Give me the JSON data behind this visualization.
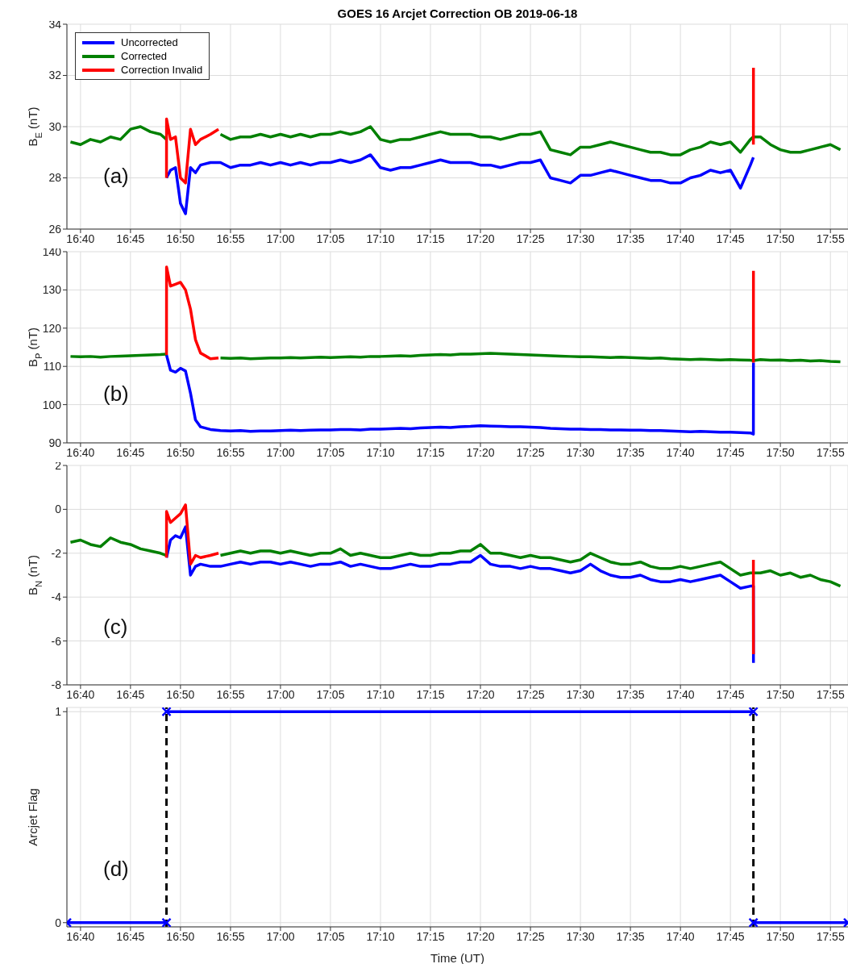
{
  "chart_data": [
    {
      "type": "line",
      "title": "GOES 16 Arcjet Correction OB 2019-06-18",
      "ylabel": "B$_{E}$ (nT)",
      "annotations": [
        "(a)"
      ],
      "grid": true,
      "legend": "top left",
      "xlim": [
        16.644,
        17.946
      ],
      "xticks": [
        {
          "value": 16.6667,
          "label": "16:40"
        },
        {
          "value": 16.75,
          "label": "16:45"
        },
        {
          "value": 16.8333,
          "label": "16:50"
        },
        {
          "value": 16.9167,
          "label": "16:55"
        },
        {
          "value": 17,
          "label": "17:00"
        },
        {
          "value": 17.0833,
          "label": "17:05"
        },
        {
          "value": 17.1667,
          "label": "17:10"
        },
        {
          "value": 17.25,
          "label": "17:15"
        },
        {
          "value": 17.3333,
          "label": "17:20"
        },
        {
          "value": 17.4167,
          "label": "17:25"
        },
        {
          "value": 17.5,
          "label": "17:30"
        },
        {
          "value": 17.5833,
          "label": "17:35"
        },
        {
          "value": 17.6667,
          "label": "17:40"
        },
        {
          "value": 17.75,
          "label": "17:45"
        },
        {
          "value": 17.8333,
          "label": "17:50"
        },
        {
          "value": 17.9167,
          "label": "17:55"
        }
      ],
      "ylim": [
        26,
        34
      ],
      "yticks": [
        26,
        28,
        30,
        32,
        34
      ],
      "x": [
        16.65,
        16.6667,
        16.6833,
        16.7,
        16.7167,
        16.7333,
        16.75,
        16.7667,
        16.7833,
        16.8,
        16.81,
        16.8167,
        16.8333,
        16.85,
        16.8667,
        16.8833,
        16.9,
        16.9167,
        16.9333,
        16.95,
        16.9667,
        16.9833,
        17,
        17.0167,
        17.0333,
        17.05,
        17.0667,
        17.0833,
        17.1,
        17.1167,
        17.1333,
        17.15,
        17.1667,
        17.1833,
        17.2,
        17.2167,
        17.2333,
        17.25,
        17.2667,
        17.2833,
        17.3,
        17.3167,
        17.3333,
        17.35,
        17.3667,
        17.3833,
        17.4,
        17.4167,
        17.4333,
        17.45,
        17.4667,
        17.4833,
        17.5,
        17.5167,
        17.5333,
        17.55,
        17.5667,
        17.5833,
        17.6,
        17.6167,
        17.6333,
        17.65,
        17.6667,
        17.6833,
        17.7,
        17.7167,
        17.7333,
        17.75,
        17.7667,
        17.7833,
        17.7883,
        17.8,
        17.8167,
        17.8333,
        17.85,
        17.8667,
        17.8833,
        17.9,
        17.9167,
        17.9333
      ],
      "series": [
        {
          "name": "Uncorrected",
          "color": "#0000ff",
          "x": [
            16.81,
            16.8167,
            16.825,
            16.8333,
            16.8417,
            16.85,
            16.8583,
            16.8667,
            16.8833,
            16.9,
            16.9167,
            16.9333,
            16.95,
            16.9667,
            16.9833,
            17,
            17.0167,
            17.0333,
            17.05,
            17.0667,
            17.0833,
            17.1,
            17.1167,
            17.1333,
            17.15,
            17.1667,
            17.1833,
            17.2,
            17.2167,
            17.2333,
            17.25,
            17.2667,
            17.2833,
            17.3,
            17.3167,
            17.3333,
            17.35,
            17.3667,
            17.3833,
            17.4,
            17.4167,
            17.4333,
            17.45,
            17.4667,
            17.4833,
            17.5,
            17.5167,
            17.5333,
            17.55,
            17.5667,
            17.5833,
            17.6,
            17.6167,
            17.6333,
            17.65,
            17.6667,
            17.6833,
            17.7,
            17.7167,
            17.7333,
            17.75,
            17.7667,
            17.7833,
            17.7883
          ],
          "values": [
            28.0,
            28.3,
            28.4,
            27.0,
            26.6,
            28.4,
            28.2,
            28.5,
            28.6,
            28.6,
            28.4,
            28.5,
            28.5,
            28.6,
            28.5,
            28.6,
            28.5,
            28.6,
            28.5,
            28.6,
            28.6,
            28.7,
            28.6,
            28.7,
            28.9,
            28.4,
            28.3,
            28.4,
            28.4,
            28.5,
            28.6,
            28.7,
            28.6,
            28.6,
            28.6,
            28.5,
            28.5,
            28.4,
            28.5,
            28.6,
            28.6,
            28.7,
            28.0,
            27.9,
            27.8,
            28.1,
            28.1,
            28.2,
            28.3,
            28.2,
            28.1,
            28.0,
            27.9,
            27.9,
            27.8,
            27.8,
            28.0,
            28.1,
            28.3,
            28.2,
            28.3,
            27.6,
            28.5,
            28.8
          ]
        },
        {
          "name": "Corrected",
          "color": "#008000",
          "values": [
            29.4,
            29.3,
            29.5,
            29.4,
            29.6,
            29.5,
            29.9,
            30.0,
            29.8,
            29.7,
            29.5,
            null,
            null,
            null,
            null,
            null,
            29.7,
            29.5,
            29.6,
            29.6,
            29.7,
            29.6,
            29.7,
            29.6,
            29.7,
            29.6,
            29.7,
            29.7,
            29.8,
            29.7,
            29.8,
            30.0,
            29.5,
            29.4,
            29.5,
            29.5,
            29.6,
            29.7,
            29.8,
            29.7,
            29.7,
            29.7,
            29.6,
            29.6,
            29.5,
            29.6,
            29.7,
            29.7,
            29.8,
            29.1,
            29.0,
            28.9,
            29.2,
            29.2,
            29.3,
            29.4,
            29.3,
            29.2,
            29.1,
            29.0,
            29.0,
            28.9,
            28.9,
            29.1,
            29.2,
            29.4,
            29.3,
            29.4,
            29.0,
            29.5,
            29.6,
            29.6,
            29.3,
            29.1,
            29.0,
            29.0,
            29.1,
            29.2,
            29.3,
            29.1
          ]
        },
        {
          "name": "Correction Invalid",
          "color": "#ff0000",
          "x": [
            16.81,
            16.8101,
            16.8167,
            16.825,
            16.8333,
            16.8417,
            16.85,
            16.8583,
            16.8667,
            16.8833,
            16.8967,
            16.9,
            17.7883,
            17.7884
          ],
          "values": [
            28.0,
            30.3,
            29.5,
            29.6,
            28.0,
            27.8,
            29.9,
            29.3,
            29.5,
            29.7,
            29.9,
            null,
            29.3,
            32.3
          ]
        }
      ]
    },
    {
      "type": "line",
      "ylabel": "B$_{P}$ (nT)",
      "annotations": [
        "(b)"
      ],
      "grid": true,
      "xlim": [
        16.644,
        17.946
      ],
      "xticks": [
        {
          "value": 16.6667,
          "label": "16:40"
        },
        {
          "value": 16.75,
          "label": "16:45"
        },
        {
          "value": 16.8333,
          "label": "16:50"
        },
        {
          "value": 16.9167,
          "label": "16:55"
        },
        {
          "value": 17,
          "label": "17:00"
        },
        {
          "value": 17.0833,
          "label": "17:05"
        },
        {
          "value": 17.1667,
          "label": "17:10"
        },
        {
          "value": 17.25,
          "label": "17:15"
        },
        {
          "value": 17.3333,
          "label": "17:20"
        },
        {
          "value": 17.4167,
          "label": "17:25"
        },
        {
          "value": 17.5,
          "label": "17:30"
        },
        {
          "value": 17.5833,
          "label": "17:35"
        },
        {
          "value": 17.6667,
          "label": "17:40"
        },
        {
          "value": 17.75,
          "label": "17:45"
        },
        {
          "value": 17.8333,
          "label": "17:50"
        },
        {
          "value": 17.9167,
          "label": "17:55"
        }
      ],
      "ylim": [
        90,
        140
      ],
      "yticks": [
        90,
        100,
        110,
        120,
        130,
        140
      ],
      "x": [
        16.65,
        16.6667,
        16.6833,
        16.7,
        16.7167,
        16.7333,
        16.75,
        16.7667,
        16.7833,
        16.8,
        16.81,
        16.8167,
        16.8333,
        16.85,
        16.8667,
        16.8833,
        16.9,
        16.9167,
        16.9333,
        16.95,
        16.9667,
        16.9833,
        17,
        17.0167,
        17.0333,
        17.05,
        17.0667,
        17.0833,
        17.1,
        17.1167,
        17.1333,
        17.15,
        17.1667,
        17.1833,
        17.2,
        17.2167,
        17.2333,
        17.25,
        17.2667,
        17.2833,
        17.3,
        17.3167,
        17.3333,
        17.35,
        17.3667,
        17.3833,
        17.4,
        17.4167,
        17.4333,
        17.45,
        17.4667,
        17.4833,
        17.5,
        17.5167,
        17.5333,
        17.55,
        17.5667,
        17.5833,
        17.6,
        17.6167,
        17.6333,
        17.65,
        17.6667,
        17.6833,
        17.7,
        17.7167,
        17.7333,
        17.75,
        17.7667,
        17.7833,
        17.7883,
        17.8,
        17.8167,
        17.8333,
        17.85,
        17.8667,
        17.8833,
        17.9,
        17.9167,
        17.9333
      ],
      "series": [
        {
          "color": "#0000ff",
          "x": [
            16.81,
            16.8167,
            16.825,
            16.8333,
            16.8417,
            16.85,
            16.8583,
            16.8667,
            16.8833,
            16.9,
            16.9167,
            16.9333,
            16.95,
            16.9667,
            16.9833,
            17,
            17.0167,
            17.0333,
            17.05,
            17.0667,
            17.0833,
            17.1,
            17.1167,
            17.1333,
            17.15,
            17.1667,
            17.1833,
            17.2,
            17.2167,
            17.2333,
            17.25,
            17.2667,
            17.2833,
            17.3,
            17.3167,
            17.3333,
            17.35,
            17.3667,
            17.3833,
            17.4,
            17.4167,
            17.4333,
            17.45,
            17.4667,
            17.4833,
            17.5,
            17.5167,
            17.5333,
            17.55,
            17.5667,
            17.5833,
            17.6,
            17.6167,
            17.6333,
            17.65,
            17.6667,
            17.6833,
            17.7,
            17.7167,
            17.7333,
            17.75,
            17.7667,
            17.7833,
            17.7883,
            17.7884
          ],
          "values": [
            113.0,
            109.0,
            108.5,
            109.5,
            108.8,
            103.0,
            96.0,
            94.2,
            93.5,
            93.2,
            93.1,
            93.2,
            93.0,
            93.1,
            93.1,
            93.2,
            93.3,
            93.2,
            93.3,
            93.4,
            93.4,
            93.5,
            93.5,
            93.4,
            93.6,
            93.6,
            93.7,
            93.8,
            93.7,
            93.9,
            94.0,
            94.1,
            94.0,
            94.2,
            94.3,
            94.5,
            94.4,
            94.3,
            94.2,
            94.2,
            94.1,
            94.0,
            93.8,
            93.7,
            93.6,
            93.6,
            93.5,
            93.5,
            93.4,
            93.4,
            93.3,
            93.3,
            93.2,
            93.2,
            93.1,
            93.0,
            92.9,
            93.0,
            92.9,
            92.8,
            92.8,
            92.7,
            92.6,
            92.3,
            111.0
          ]
        },
        {
          "color": "#008000",
          "values": [
            112.6,
            112.5,
            112.6,
            112.4,
            112.6,
            112.7,
            112.8,
            112.9,
            113.0,
            113.1,
            113.2,
            null,
            null,
            null,
            null,
            null,
            112.2,
            112.1,
            112.2,
            112.0,
            112.1,
            112.2,
            112.2,
            112.3,
            112.2,
            112.3,
            112.4,
            112.3,
            112.4,
            112.5,
            112.4,
            112.6,
            112.6,
            112.7,
            112.8,
            112.7,
            112.9,
            113.0,
            113.1,
            113.0,
            113.2,
            113.2,
            113.3,
            113.4,
            113.3,
            113.2,
            113.1,
            113.0,
            112.9,
            112.8,
            112.7,
            112.6,
            112.5,
            112.5,
            112.4,
            112.3,
            112.4,
            112.3,
            112.2,
            112.1,
            112.2,
            112.0,
            111.9,
            111.8,
            111.9,
            111.8,
            111.7,
            111.8,
            111.7,
            111.6,
            111.5,
            111.8,
            111.6,
            111.7,
            111.5,
            111.6,
            111.4,
            111.5,
            111.3,
            111.2
          ]
        },
        {
          "color": "#ff0000",
          "x": [
            16.81,
            16.8101,
            16.8167,
            16.825,
            16.8333,
            16.8417,
            16.85,
            16.8583,
            16.8667,
            16.8833,
            16.8967,
            16.9,
            17.7883,
            17.7884
          ],
          "values": [
            113.0,
            136.0,
            131.0,
            131.5,
            132.0,
            130.0,
            125.0,
            117.0,
            113.5,
            112.0,
            112.2,
            null,
            111.0,
            135.0
          ]
        }
      ]
    },
    {
      "type": "line",
      "ylabel": "B$_{N}$ (nT)",
      "annotations": [
        "(c)"
      ],
      "grid": true,
      "xlim": [
        16.644,
        17.946
      ],
      "xticks": [
        {
          "value": 16.6667,
          "label": "16:40"
        },
        {
          "value": 16.75,
          "label": "16:45"
        },
        {
          "value": 16.8333,
          "label": "16:50"
        },
        {
          "value": 16.9167,
          "label": "16:55"
        },
        {
          "value": 17,
          "label": "17:00"
        },
        {
          "value": 17.0833,
          "label": "17:05"
        },
        {
          "value": 17.1667,
          "label": "17:10"
        },
        {
          "value": 17.25,
          "label": "17:15"
        },
        {
          "value": 17.3333,
          "label": "17:20"
        },
        {
          "value": 17.4167,
          "label": "17:25"
        },
        {
          "value": 17.5,
          "label": "17:30"
        },
        {
          "value": 17.5833,
          "label": "17:35"
        },
        {
          "value": 17.6667,
          "label": "17:40"
        },
        {
          "value": 17.75,
          "label": "17:45"
        },
        {
          "value": 17.8333,
          "label": "17:50"
        },
        {
          "value": 17.9167,
          "label": "17:55"
        }
      ],
      "ylim": [
        -8,
        2
      ],
      "yticks": [
        -8,
        -6,
        -4,
        -2,
        0,
        2
      ],
      "x": [
        16.65,
        16.6667,
        16.6833,
        16.7,
        16.7167,
        16.7333,
        16.75,
        16.7667,
        16.7833,
        16.8,
        16.81,
        16.8167,
        16.8333,
        16.85,
        16.8667,
        16.8833,
        16.9,
        16.9167,
        16.9333,
        16.95,
        16.9667,
        16.9833,
        17,
        17.0167,
        17.0333,
        17.05,
        17.0667,
        17.0833,
        17.1,
        17.1167,
        17.1333,
        17.15,
        17.1667,
        17.1833,
        17.2,
        17.2167,
        17.2333,
        17.25,
        17.2667,
        17.2833,
        17.3,
        17.3167,
        17.3333,
        17.35,
        17.3667,
        17.3833,
        17.4,
        17.4167,
        17.4333,
        17.45,
        17.4667,
        17.4833,
        17.5,
        17.5167,
        17.5333,
        17.55,
        17.5667,
        17.5833,
        17.6,
        17.6167,
        17.6333,
        17.65,
        17.6667,
        17.6833,
        17.7,
        17.7167,
        17.7333,
        17.75,
        17.7667,
        17.7833,
        17.7883,
        17.8,
        17.8167,
        17.8333,
        17.85,
        17.8667,
        17.8833,
        17.9,
        17.9167,
        17.9333
      ],
      "series": [
        {
          "color": "#0000ff",
          "x": [
            16.81,
            16.8167,
            16.825,
            16.8333,
            16.8417,
            16.85,
            16.8583,
            16.8667,
            16.8833,
            16.9,
            16.9167,
            16.9333,
            16.95,
            16.9667,
            16.9833,
            17,
            17.0167,
            17.0333,
            17.05,
            17.0667,
            17.0833,
            17.1,
            17.1167,
            17.1333,
            17.15,
            17.1667,
            17.1833,
            17.2,
            17.2167,
            17.2333,
            17.25,
            17.2667,
            17.2833,
            17.3,
            17.3167,
            17.3333,
            17.35,
            17.3667,
            17.3833,
            17.4,
            17.4167,
            17.4333,
            17.45,
            17.4667,
            17.4833,
            17.5,
            17.5167,
            17.5333,
            17.55,
            17.5667,
            17.5833,
            17.6,
            17.6167,
            17.6333,
            17.65,
            17.6667,
            17.6833,
            17.7,
            17.7167,
            17.7333,
            17.75,
            17.7667,
            17.7833,
            17.7883,
            17.7884
          ],
          "values": [
            -2.2,
            -1.4,
            -1.2,
            -1.3,
            -0.8,
            -3.0,
            -2.6,
            -2.5,
            -2.6,
            -2.6,
            -2.5,
            -2.4,
            -2.5,
            -2.4,
            -2.4,
            -2.5,
            -2.4,
            -2.5,
            -2.6,
            -2.5,
            -2.5,
            -2.4,
            -2.6,
            -2.5,
            -2.6,
            -2.7,
            -2.7,
            -2.6,
            -2.5,
            -2.6,
            -2.6,
            -2.5,
            -2.5,
            -2.4,
            -2.4,
            -2.1,
            -2.5,
            -2.6,
            -2.6,
            -2.7,
            -2.6,
            -2.7,
            -2.7,
            -2.8,
            -2.9,
            -2.8,
            -2.5,
            -2.8,
            -3.0,
            -3.1,
            -3.1,
            -3.0,
            -3.2,
            -3.3,
            -3.3,
            -3.2,
            -3.3,
            -3.2,
            -3.1,
            -3.0,
            -3.3,
            -3.6,
            -3.5,
            -3.5,
            -7.0
          ]
        },
        {
          "color": "#008000",
          "values": [
            -1.5,
            -1.4,
            -1.6,
            -1.7,
            -1.3,
            -1.5,
            -1.6,
            -1.8,
            -1.9,
            -2.0,
            -2.1,
            null,
            null,
            null,
            null,
            null,
            -2.1,
            -2.0,
            -1.9,
            -2.0,
            -1.9,
            -1.9,
            -2.0,
            -1.9,
            -2.0,
            -2.1,
            -2.0,
            -2.0,
            -1.8,
            -2.1,
            -2.0,
            -2.1,
            -2.2,
            -2.2,
            -2.1,
            -2.0,
            -2.1,
            -2.1,
            -2.0,
            -2.0,
            -1.9,
            -1.9,
            -1.6,
            -2.0,
            -2.0,
            -2.1,
            -2.2,
            -2.1,
            -2.2,
            -2.2,
            -2.3,
            -2.4,
            -2.3,
            -2.0,
            -2.2,
            -2.4,
            -2.5,
            -2.5,
            -2.4,
            -2.6,
            -2.7,
            -2.7,
            -2.6,
            -2.7,
            -2.6,
            -2.5,
            -2.4,
            -2.7,
            -3.0,
            -2.9,
            -2.9,
            -2.9,
            -2.8,
            -3.0,
            -2.9,
            -3.1,
            -3.0,
            -3.2,
            -3.3,
            -3.5
          ]
        },
        {
          "color": "#ff0000",
          "x": [
            16.81,
            16.8101,
            16.8167,
            16.825,
            16.8333,
            16.8417,
            16.85,
            16.8583,
            16.8667,
            16.8833,
            16.8967,
            16.9,
            17.7883,
            17.7884
          ],
          "values": [
            -2.2,
            -0.1,
            -0.6,
            -0.4,
            -0.2,
            0.2,
            -2.5,
            -2.1,
            -2.2,
            -2.1,
            -2.0,
            null,
            -2.3,
            -6.6
          ]
        }
      ]
    },
    {
      "type": "line",
      "ylabel": "Arcjet Flag",
      "xlabel": "Time (UT)",
      "annotations": [
        "(d)"
      ],
      "grid": true,
      "xlim": [
        16.644,
        17.946
      ],
      "xticks": [
        {
          "value": 16.6667,
          "label": "16:40"
        },
        {
          "value": 16.75,
          "label": "16:45"
        },
        {
          "value": 16.8333,
          "label": "16:50"
        },
        {
          "value": 16.9167,
          "label": "16:55"
        },
        {
          "value": 17,
          "label": "17:00"
        },
        {
          "value": 17.0833,
          "label": "17:05"
        },
        {
          "value": 17.1667,
          "label": "17:10"
        },
        {
          "value": 17.25,
          "label": "17:15"
        },
        {
          "value": 17.3333,
          "label": "17:20"
        },
        {
          "value": 17.4167,
          "label": "17:25"
        },
        {
          "value": 17.5,
          "label": "17:30"
        },
        {
          "value": 17.5833,
          "label": "17:35"
        },
        {
          "value": 17.6667,
          "label": "17:40"
        },
        {
          "value": 17.75,
          "label": "17:45"
        },
        {
          "value": 17.8333,
          "label": "17:50"
        },
        {
          "value": 17.9167,
          "label": "17:55"
        }
      ],
      "ylim": [
        -0.02,
        1.02
      ],
      "yticks": [
        0,
        1
      ],
      "ref_lines": [
        {
          "axis": "x",
          "value": 16.81,
          "color": "#000000",
          "line_style": "dashed"
        },
        {
          "axis": "x",
          "value": 17.7883,
          "color": "#000000",
          "line_style": "dashed"
        }
      ],
      "series": [
        {
          "color": "#0000ff",
          "marker": "cross",
          "x": [
            16.644,
            16.81
          ],
          "values": [
            0,
            0
          ]
        },
        {
          "color": "#0000ff",
          "marker": "cross",
          "x": [
            16.81,
            17.7883
          ],
          "values": [
            1,
            1
          ]
        },
        {
          "color": "#0000ff",
          "marker": "cross",
          "x": [
            17.7883,
            17.946
          ],
          "values": [
            0,
            0
          ]
        }
      ]
    }
  ]
}
